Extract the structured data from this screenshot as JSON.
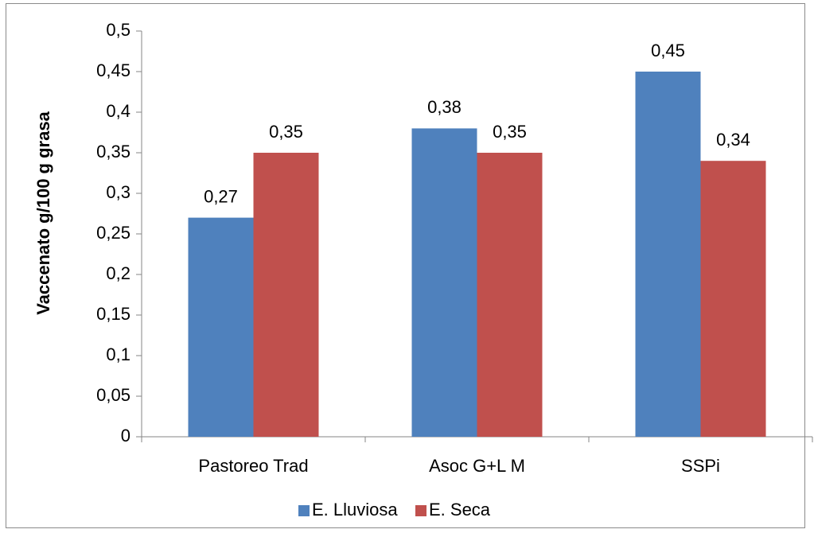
{
  "chart_data": {
    "type": "bar",
    "title": "",
    "xlabel": "",
    "ylabel": "Vaccenato  g/100 g grasa",
    "categories": [
      "Pastoreo Trad",
      "Asoc G+L M",
      "SSPi"
    ],
    "series": [
      {
        "name": "E. Lluviosa",
        "color": "#4F81BD",
        "values": [
          0.27,
          0.38,
          0.45
        ],
        "labels": [
          "0,27",
          "0,38",
          "0,45"
        ]
      },
      {
        "name": "E. Seca",
        "color": "#C0504D",
        "values": [
          0.35,
          0.35,
          0.34
        ],
        "labels": [
          "0,35",
          "0,35",
          "0,34"
        ]
      }
    ],
    "ylim": [
      0,
      0.5
    ],
    "yticks": [
      0,
      0.05,
      0.1,
      0.15,
      0.2,
      0.25,
      0.3,
      0.35,
      0.4,
      0.45,
      0.5
    ],
    "ytick_labels": [
      "0",
      "0,05",
      "0,1",
      "0,15",
      "0,2",
      "0,25",
      "0,3",
      "0,35",
      "0,4",
      "0,45",
      "0,5"
    ],
    "grid": false,
    "legend_position": "bottom"
  }
}
